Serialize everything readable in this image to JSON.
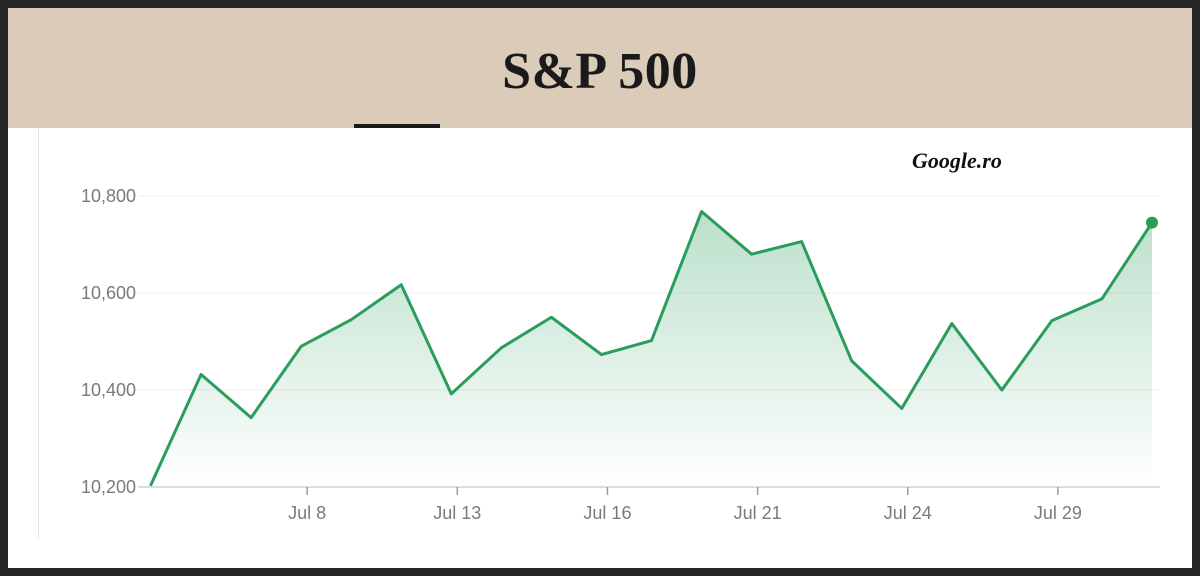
{
  "header": {
    "title": "S&P 500"
  },
  "source_label": "Google.ro",
  "colors": {
    "line": "#2a9d5c",
    "header_bg": "#dbcbb9",
    "grid": "#eeeeee",
    "tick_text": "#7a7a7a"
  },
  "chart_data": {
    "type": "area",
    "title": "S&P 500",
    "xlabel": "",
    "ylabel": "",
    "ylim": [
      10200,
      10800
    ],
    "y_ticks": [
      10200,
      10400,
      10600,
      10800
    ],
    "y_tick_labels": [
      "10,200",
      "10,400",
      "10,600",
      "10,800"
    ],
    "x_tick_labels": [
      "Jul 8",
      "Jul 13",
      "Jul 16",
      "Jul 21",
      "Jul 24",
      "Jul 29"
    ],
    "x_tick_indices": [
      3,
      6,
      9,
      12,
      15,
      18
    ],
    "grid": true,
    "series": [
      {
        "values": [
          10205,
          10432,
          10343,
          10490,
          10545,
          10617,
          10392,
          10487,
          10550,
          10473,
          10502,
          10768,
          10680,
          10706,
          10460,
          10362,
          10537,
          10400,
          10543,
          10588,
          10745
        ],
        "last_point_marker": true
      }
    ]
  }
}
